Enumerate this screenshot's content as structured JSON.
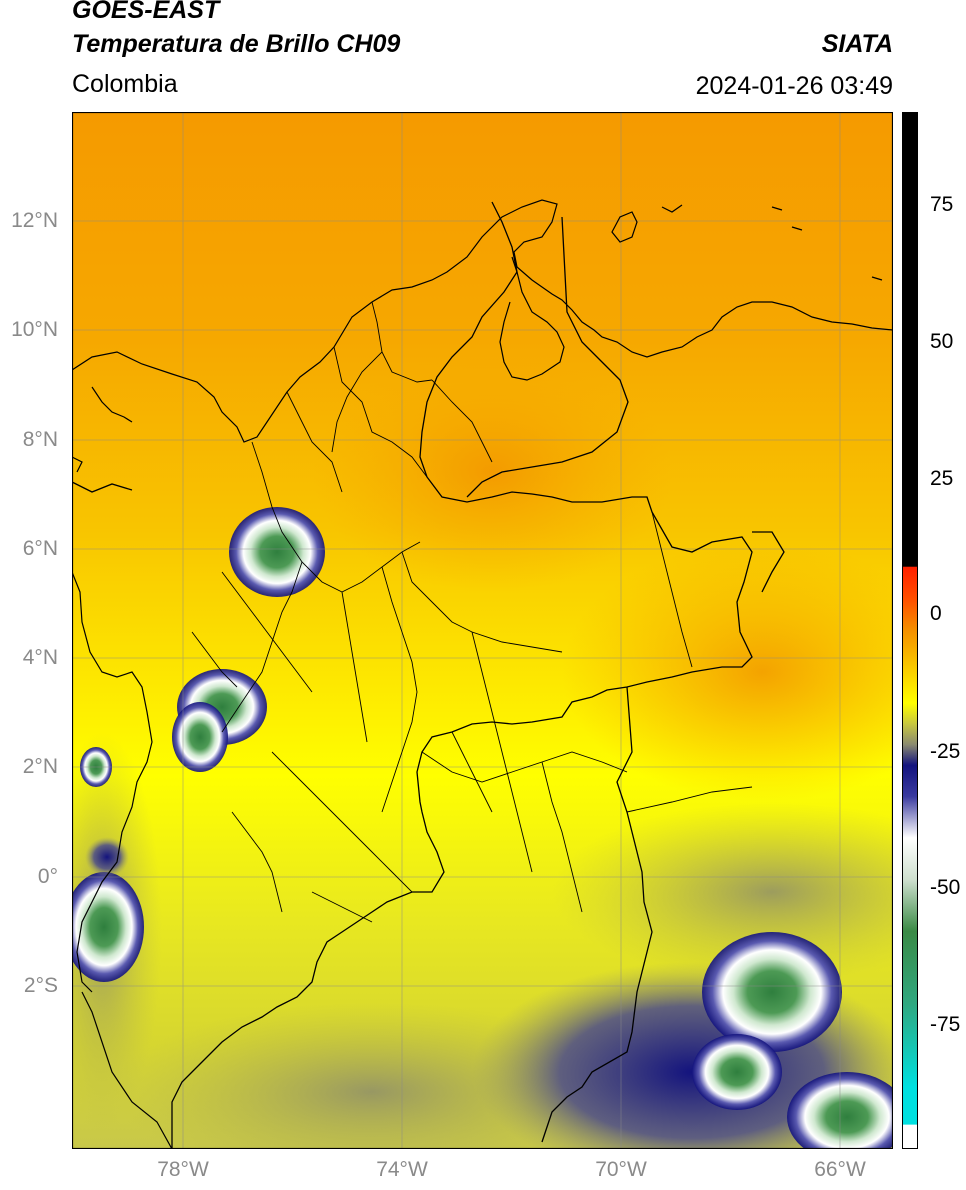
{
  "header": {
    "title_line1": "GOES-EAST",
    "title_line2": "Temperatura de Brillo CH09",
    "region": "Colombia",
    "source": "SIATA",
    "datetime": "2024-01-26 03:49"
  },
  "axes": {
    "lat_labels": [
      "12°N",
      "10°N",
      "8°N",
      "6°N",
      "4°N",
      "2°N",
      "0°",
      "2°S"
    ],
    "lon_labels": [
      "78°W",
      "74°W",
      "70°W",
      "66°W"
    ]
  },
  "colorbar": {
    "ticks": [
      "75",
      "50",
      "25",
      "0",
      "-25",
      "-50",
      "-75"
    ]
  },
  "colors": {
    "warm_orange": "#f5a000",
    "orange_yellow": "#f7be00",
    "yellow": "#ffff00",
    "olive": "#c9c83a",
    "gray_olive": "#9a9a6a",
    "deep_blue": "#13137e",
    "white": "#ffffff",
    "green": "#3a8a45",
    "teal": "#2fb59a",
    "cyan": "#00e0e0",
    "red": "#ff2000",
    "black": "#000000"
  }
}
